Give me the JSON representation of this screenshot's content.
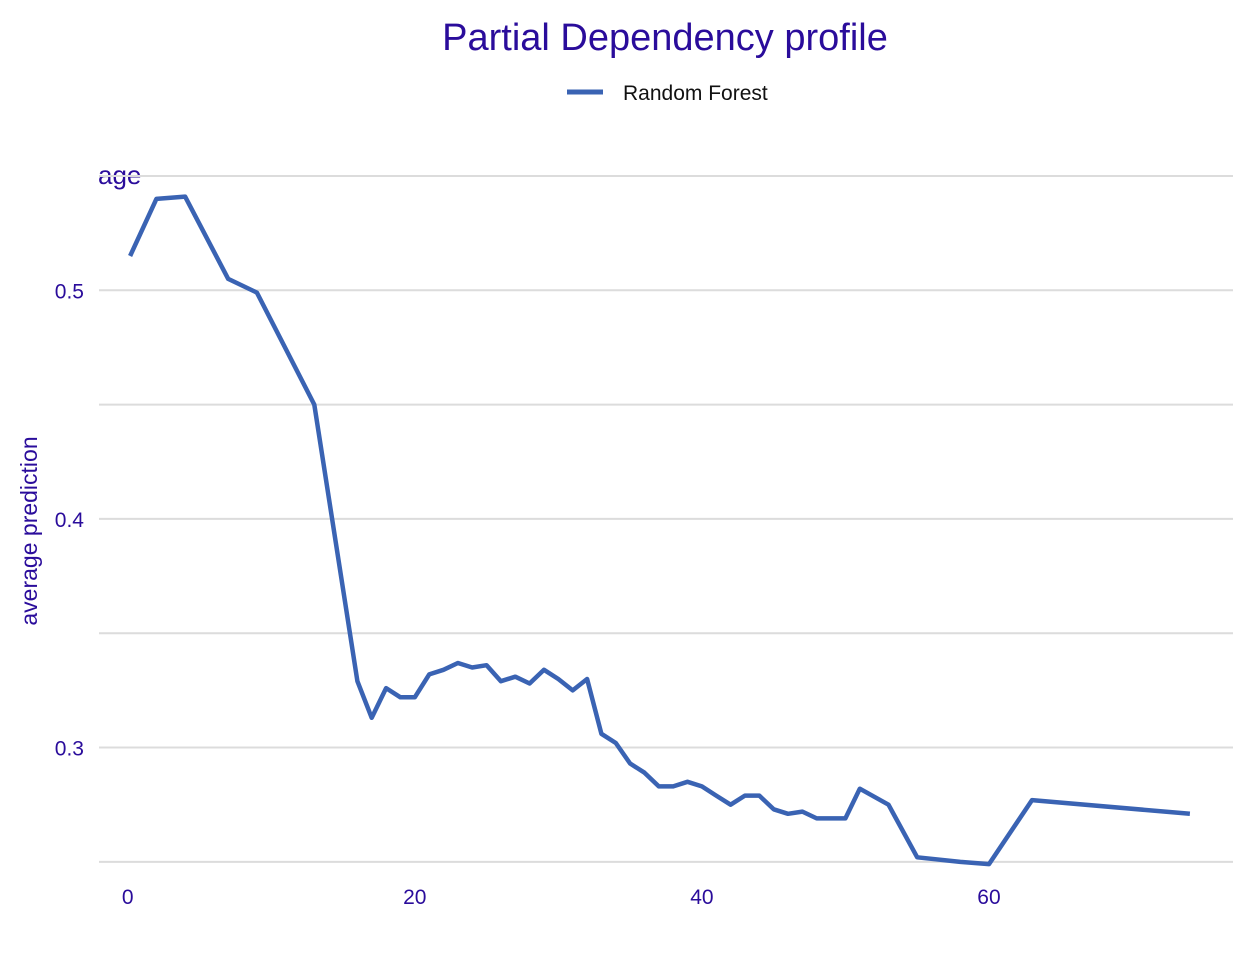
{
  "chart_data": {
    "type": "line",
    "title": "Partial Dependency profile",
    "facet_label": "age",
    "xlabel": "",
    "ylabel": "average prediction",
    "xlim": [
      -2,
      77
    ],
    "ylim": [
      0.246,
      0.55
    ],
    "x_ticks": [
      0,
      20,
      40,
      60
    ],
    "y_ticks": [
      0.3,
      0.4,
      0.5
    ],
    "y_gridlines": [
      0.25,
      0.3,
      0.35,
      0.4,
      0.45,
      0.5,
      0.55
    ],
    "grid": true,
    "legend_position": "top",
    "colors": {
      "title": "#2a0c9b",
      "axis_text": "#2a0c9b",
      "grid": "#dcdcdc"
    },
    "series": [
      {
        "name": "Random Forest",
        "color": "#3a63b3",
        "x": [
          0.17,
          2,
          4,
          7,
          9,
          13,
          16,
          17,
          18,
          19,
          20,
          21,
          22,
          23,
          24,
          25,
          26,
          27,
          28,
          29,
          30,
          31,
          32,
          33,
          34,
          35,
          36,
          37,
          38,
          39,
          40,
          41,
          42,
          43,
          44,
          45,
          46,
          47,
          48,
          49,
          50,
          51,
          53,
          55,
          58,
          60,
          63,
          74
        ],
        "y": [
          0.515,
          0.54,
          0.541,
          0.505,
          0.499,
          0.45,
          0.329,
          0.313,
          0.326,
          0.322,
          0.322,
          0.332,
          0.334,
          0.337,
          0.335,
          0.336,
          0.329,
          0.331,
          0.328,
          0.334,
          0.33,
          0.325,
          0.33,
          0.306,
          0.302,
          0.293,
          0.289,
          0.283,
          0.283,
          0.285,
          0.283,
          0.279,
          0.275,
          0.279,
          0.279,
          0.273,
          0.271,
          0.272,
          0.269,
          0.269,
          0.269,
          0.282,
          0.275,
          0.252,
          0.25,
          0.249,
          0.277,
          0.271
        ]
      }
    ]
  }
}
